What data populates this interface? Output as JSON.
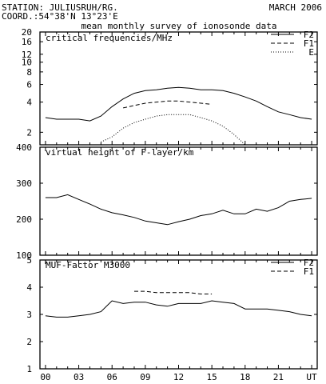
{
  "header": {
    "station": "STATION: JULIUSRUH/RG.",
    "coord": "COORD.:54°38'N 13°23'E",
    "date": "MARCH 2006",
    "subtitle": "mean monthly survey of ionosonde data"
  },
  "chart_data": [
    {
      "type": "line",
      "title": "critical frequencies/MHz",
      "yscale": "log",
      "ylim": [
        1.5,
        20
      ],
      "yticks": [
        "2",
        "4",
        "6",
        "8",
        "10",
        "12",
        "16",
        "20"
      ],
      "xlim": [
        -0.5,
        24.5
      ],
      "xticks": [
        "00",
        "03",
        "06",
        "09",
        "12",
        "15",
        "18",
        "21",
        "UT"
      ],
      "legend": "top-right",
      "series": [
        {
          "name": "F2",
          "style": "solid",
          "x": [
            0,
            1,
            2,
            3,
            4,
            5,
            6,
            7,
            8,
            9,
            10,
            11,
            12,
            13,
            14,
            15,
            16,
            17,
            18,
            19,
            20,
            21,
            22,
            23,
            24
          ],
          "values": [
            2.8,
            2.7,
            2.7,
            2.7,
            2.6,
            2.9,
            3.6,
            4.3,
            4.9,
            5.2,
            5.3,
            5.5,
            5.6,
            5.5,
            5.3,
            5.3,
            5.2,
            4.9,
            4.5,
            4.1,
            3.6,
            3.2,
            3.0,
            2.8,
            2.7
          ]
        },
        {
          "name": "F1",
          "style": "dashed",
          "x": [
            7,
            8,
            9,
            10,
            11,
            12,
            13,
            14,
            15
          ],
          "values": [
            3.5,
            3.7,
            3.9,
            4.0,
            4.1,
            4.1,
            4.0,
            3.9,
            3.8
          ]
        },
        {
          "name": "E",
          "style": "dotted",
          "x": [
            5,
            6,
            7,
            8,
            9,
            10,
            11,
            12,
            13,
            14,
            15,
            16,
            17,
            18
          ],
          "values": [
            1.6,
            1.8,
            2.2,
            2.5,
            2.7,
            2.9,
            3.0,
            3.0,
            3.0,
            2.8,
            2.6,
            2.3,
            1.9,
            1.5
          ]
        }
      ]
    },
    {
      "type": "line",
      "title": "virtual height of F-layer/km",
      "ylim": [
        100,
        400
      ],
      "yticks": [
        "100",
        "200",
        "300",
        "400"
      ],
      "xlim": [
        -0.5,
        24.5
      ],
      "series": [
        {
          "style": "solid",
          "x": [
            0,
            1,
            2,
            3,
            4,
            5,
            6,
            7,
            8,
            9,
            10,
            11,
            12,
            13,
            14,
            15,
            16,
            17,
            18,
            19,
            20,
            21,
            22,
            23,
            24
          ],
          "values": [
            260,
            260,
            268,
            255,
            242,
            228,
            218,
            212,
            205,
            195,
            190,
            185,
            193,
            200,
            210,
            215,
            225,
            215,
            215,
            228,
            222,
            232,
            250,
            255,
            258
          ]
        }
      ]
    },
    {
      "type": "line",
      "title": "MUF-Factor M3000",
      "ylim": [
        1,
        5
      ],
      "yticks": [
        "1",
        "2",
        "3",
        "4",
        "5"
      ],
      "xlim": [
        -0.5,
        24.5
      ],
      "xticks": [
        "00",
        "03",
        "06",
        "09",
        "12",
        "15",
        "18",
        "21",
        "UT"
      ],
      "legend": "top-right",
      "series": [
        {
          "name": "F2",
          "style": "solid",
          "x": [
            0,
            1,
            2,
            3,
            4,
            5,
            6,
            7,
            8,
            9,
            10,
            11,
            12,
            13,
            14,
            15,
            16,
            17,
            18,
            19,
            20,
            21,
            22,
            23,
            24
          ],
          "values": [
            2.95,
            2.9,
            2.9,
            2.95,
            3.0,
            3.1,
            3.5,
            3.4,
            3.45,
            3.45,
            3.35,
            3.3,
            3.4,
            3.4,
            3.4,
            3.5,
            3.45,
            3.4,
            3.2,
            3.2,
            3.2,
            3.15,
            3.1,
            3.0,
            2.95
          ]
        },
        {
          "name": "F1",
          "style": "dashed",
          "x": [
            8,
            9,
            10,
            11,
            12,
            13,
            14,
            15
          ],
          "values": [
            3.85,
            3.85,
            3.8,
            3.8,
            3.8,
            3.8,
            3.75,
            3.75
          ]
        }
      ]
    }
  ]
}
